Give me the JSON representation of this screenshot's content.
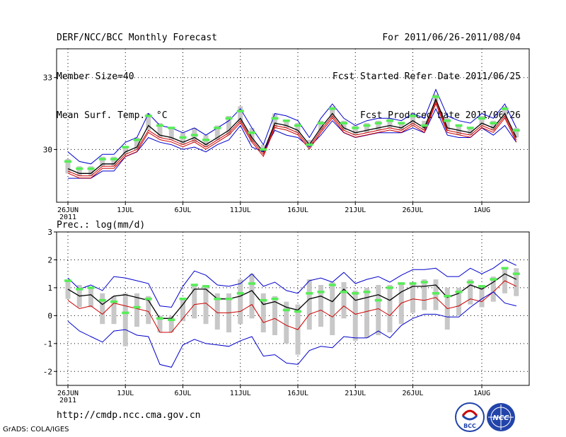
{
  "header": {
    "title": "DERF/NCC/BCC Monthly Forecast",
    "member_size": "Member Size=40",
    "variable": "Mean Surf. Temp.: °C",
    "period": "For 2011/06/26-2011/08/04",
    "fcst_started": "Fcst Started Refer Date 2011/06/25",
    "fcst_produced": "Fcst Produced Date 2011/06/26"
  },
  "footer": {
    "url": "http://cmdp.ncc.cma.gov.cn",
    "grads": "GrADS: COLA/IGES",
    "logo_bcc": "BCC",
    "logo_ncc": "NCC"
  },
  "colors": {
    "ensemble_mean": "#000000",
    "member_median": "#cc0000",
    "envelope": "#0000cc",
    "observed": "#55ee55",
    "member_range": "#c8c8c8"
  },
  "chart_data": [
    {
      "type": "line",
      "title": "Mean Surf. Temp.: °C",
      "x_tick_labels": [
        "26JUN",
        "1JUL",
        "6JUL",
        "11JUL",
        "16JUL",
        "21JUL",
        "26JUL",
        "1AUG"
      ],
      "x_tick_days": [
        0,
        5,
        10,
        15,
        20,
        25,
        30,
        36
      ],
      "year_label": "2011",
      "ylim": [
        27.8,
        34.2
      ],
      "y_ticks": [
        30,
        33
      ],
      "y_tick_labels": [
        "30",
        "33"
      ],
      "series": [
        {
          "name": "ensemble mean",
          "values": [
            29.2,
            29.0,
            29.0,
            29.4,
            29.4,
            29.9,
            30.1,
            31.0,
            30.6,
            30.5,
            30.3,
            30.5,
            30.2,
            30.5,
            30.8,
            31.3,
            30.5,
            29.9,
            31.1,
            31.0,
            30.8,
            30.2,
            30.9,
            31.5,
            30.9,
            30.7,
            30.8,
            30.9,
            31.0,
            30.9,
            31.2,
            30.9,
            32.1,
            30.9,
            30.8,
            30.7,
            31.1,
            30.9,
            31.5,
            30.5
          ]
        },
        {
          "name": "member median",
          "values": [
            29.1,
            28.9,
            28.9,
            29.3,
            29.3,
            29.8,
            30.0,
            30.8,
            30.5,
            30.4,
            30.2,
            30.4,
            30.1,
            30.4,
            30.7,
            31.2,
            30.4,
            29.8,
            31.0,
            30.9,
            30.7,
            30.1,
            30.8,
            31.4,
            30.8,
            30.6,
            30.7,
            30.8,
            30.9,
            30.8,
            31.1,
            30.8,
            32.0,
            30.8,
            30.7,
            30.6,
            31.0,
            30.8,
            31.4,
            30.4
          ]
        },
        {
          "name": "upper envelope",
          "values": [
            29.9,
            29.5,
            29.4,
            29.8,
            29.8,
            30.3,
            30.5,
            31.5,
            31.0,
            30.9,
            30.7,
            30.9,
            30.6,
            30.9,
            31.2,
            31.7,
            30.9,
            30.2,
            31.5,
            31.4,
            31.2,
            30.5,
            31.3,
            31.9,
            31.3,
            31.0,
            31.2,
            31.3,
            31.3,
            31.2,
            31.5,
            31.3,
            32.5,
            31.4,
            31.2,
            31.1,
            31.5,
            31.3,
            31.9,
            30.9
          ]
        },
        {
          "name": "lower envelope",
          "values": [
            28.8,
            28.8,
            28.8,
            29.1,
            29.1,
            29.7,
            29.9,
            30.5,
            30.3,
            30.2,
            30.0,
            30.1,
            29.9,
            30.2,
            30.4,
            31.0,
            30.1,
            29.9,
            30.8,
            30.6,
            30.5,
            30.1,
            30.6,
            31.2,
            30.7,
            30.5,
            30.6,
            30.7,
            30.7,
            30.7,
            30.9,
            30.7,
            31.7,
            30.6,
            30.5,
            30.5,
            30.9,
            30.6,
            31.0,
            30.3
          ]
        }
      ],
      "member_range_low": [
        29.0,
        28.9,
        28.9,
        29.3,
        29.3,
        29.8,
        30.0,
        30.8,
        30.5,
        30.4,
        30.2,
        30.3,
        30.1,
        30.4,
        30.6,
        31.1,
        30.3,
        29.9,
        30.9,
        30.9,
        30.7,
        30.2,
        30.8,
        31.3,
        30.8,
        30.6,
        30.7,
        30.8,
        30.9,
        30.8,
        31.0,
        30.8,
        32.0,
        30.8,
        30.6,
        30.6,
        31.0,
        30.8,
        31.3,
        30.5
      ],
      "member_range_high": [
        29.6,
        29.3,
        29.3,
        29.7,
        29.7,
        30.1,
        30.5,
        31.5,
        31.1,
        30.9,
        30.7,
        30.9,
        30.6,
        31.0,
        31.4,
        31.8,
        30.9,
        30.2,
        31.5,
        31.2,
        31.1,
        30.4,
        31.2,
        31.8,
        31.2,
        31.0,
        31.1,
        31.2,
        31.3,
        31.1,
        31.5,
        31.2,
        32.3,
        31.3,
        31.0,
        30.9,
        31.4,
        31.2,
        31.8,
        30.9
      ],
      "observed": [
        29.5,
        29.2,
        29.2,
        29.6,
        29.6,
        30.1,
        30.4,
        31.4,
        31.0,
        30.9,
        30.5,
        30.6,
        30.4,
        30.9,
        31.3,
        31.6,
        30.7,
        30.0,
        31.3,
        31.2,
        31.0,
        30.2,
        31.1,
        31.7,
        31.1,
        30.9,
        31.0,
        31.1,
        31.2,
        31.1,
        31.4,
        31.0,
        32.2,
        31.2,
        31.0,
        30.9,
        31.3,
        31.1,
        31.7,
        30.8
      ]
    },
    {
      "type": "line",
      "title": "Prec.: log(mm/d)",
      "x_tick_labels": [
        "26JUN",
        "1JUL",
        "6JUL",
        "11JUL",
        "16JUL",
        "21JUL",
        "26JUL",
        "1AUG"
      ],
      "x_tick_days": [
        0,
        5,
        10,
        15,
        20,
        25,
        30,
        36
      ],
      "year_label": "2011",
      "ylim": [
        -2.5,
        3
      ],
      "y_ticks": [
        -2,
        -1,
        0,
        1,
        2,
        3
      ],
      "y_tick_labels": [
        "-2",
        "-1",
        "0",
        "1",
        "2",
        "3"
      ],
      "series": [
        {
          "name": "ensemble mean",
          "values": [
            0.95,
            0.7,
            0.75,
            0.4,
            0.7,
            0.75,
            0.65,
            0.55,
            -0.1,
            -0.1,
            0.4,
            0.95,
            0.95,
            0.6,
            0.6,
            0.7,
            0.9,
            0.4,
            0.5,
            0.3,
            0.2,
            0.6,
            0.7,
            0.5,
            0.95,
            0.55,
            0.65,
            0.75,
            0.55,
            0.85,
            1.05,
            1.05,
            1.1,
            0.65,
            0.8,
            1.1,
            0.95,
            1.2,
            1.5,
            1.3
          ]
        },
        {
          "name": "member median",
          "values": [
            0.55,
            0.25,
            0.35,
            0.05,
            0.45,
            0.35,
            0.25,
            0.15,
            -0.6,
            -0.6,
            -0.1,
            0.4,
            0.45,
            0.1,
            0.1,
            0.15,
            0.4,
            -0.25,
            -0.1,
            -0.35,
            -0.5,
            0.05,
            0.2,
            -0.05,
            0.35,
            0.05,
            0.15,
            0.25,
            0.0,
            0.45,
            0.6,
            0.55,
            0.65,
            0.25,
            0.35,
            0.6,
            0.5,
            0.85,
            1.25,
            1.05
          ]
        },
        {
          "name": "upper envelope",
          "values": [
            1.35,
            0.95,
            1.1,
            0.9,
            1.4,
            1.35,
            1.25,
            1.15,
            0.35,
            0.3,
            1.05,
            1.6,
            1.45,
            1.1,
            1.05,
            1.15,
            1.5,
            1.05,
            1.2,
            0.9,
            0.8,
            1.25,
            1.35,
            1.2,
            1.55,
            1.15,
            1.3,
            1.4,
            1.2,
            1.45,
            1.65,
            1.65,
            1.7,
            1.4,
            1.4,
            1.7,
            1.5,
            1.7,
            2.0,
            1.8
          ]
        },
        {
          "name": "lower envelope",
          "values": [
            -0.2,
            -0.55,
            -0.75,
            -0.95,
            -0.55,
            -0.5,
            -0.7,
            -0.75,
            -1.75,
            -1.85,
            -1.05,
            -0.85,
            -1.0,
            -1.05,
            -1.1,
            -0.9,
            -0.75,
            -1.45,
            -1.4,
            -1.7,
            -1.75,
            -1.25,
            -1.1,
            -1.15,
            -0.75,
            -0.8,
            -0.8,
            -0.55,
            -0.8,
            -0.35,
            -0.1,
            0.05,
            0.05,
            -0.05,
            -0.05,
            0.3,
            0.6,
            0.85,
            0.45,
            0.35
          ]
        }
      ],
      "member_range_low": [
        0.6,
        0.3,
        0.3,
        -0.3,
        -0.3,
        -1.1,
        -0.4,
        -0.3,
        -0.6,
        -0.6,
        -0.2,
        -0.1,
        -0.3,
        -0.5,
        -0.6,
        -0.3,
        -0.1,
        -0.6,
        -0.7,
        -1.0,
        -1.4,
        -0.5,
        -0.4,
        -0.7,
        -0.1,
        -0.9,
        -0.8,
        -0.7,
        -0.6,
        -0.3,
        0.1,
        0.2,
        0.2,
        -0.5,
        0.0,
        0.4,
        0.3,
        0.5,
        0.8,
        0.7
      ],
      "member_range_high": [
        1.3,
        1.1,
        1.0,
        0.8,
        0.7,
        0.8,
        0.8,
        0.7,
        0.0,
        0.0,
        0.6,
        1.1,
        1.1,
        0.8,
        0.8,
        1.3,
        1.5,
        0.8,
        0.7,
        0.5,
        0.4,
        1.3,
        1.1,
        1.2,
        1.2,
        0.9,
        1.0,
        1.1,
        1.1,
        1.2,
        1.2,
        1.3,
        1.3,
        1.0,
        1.0,
        1.3,
        1.1,
        1.4,
        1.7,
        1.7
      ],
      "observed": [
        1.25,
        0.95,
        1.0,
        0.55,
        0.5,
        0.1,
        0.3,
        0.6,
        -0.1,
        -0.15,
        0.6,
        1.1,
        1.05,
        0.6,
        0.6,
        0.8,
        1.15,
        0.55,
        0.6,
        0.2,
        0.15,
        0.8,
        0.85,
        1.1,
        0.85,
        0.8,
        0.85,
        0.55,
        1.0,
        1.15,
        1.15,
        1.2,
        0.8,
        0.7,
        0.85,
        1.2,
        1.05,
        1.3,
        1.7,
        1.5
      ]
    }
  ]
}
